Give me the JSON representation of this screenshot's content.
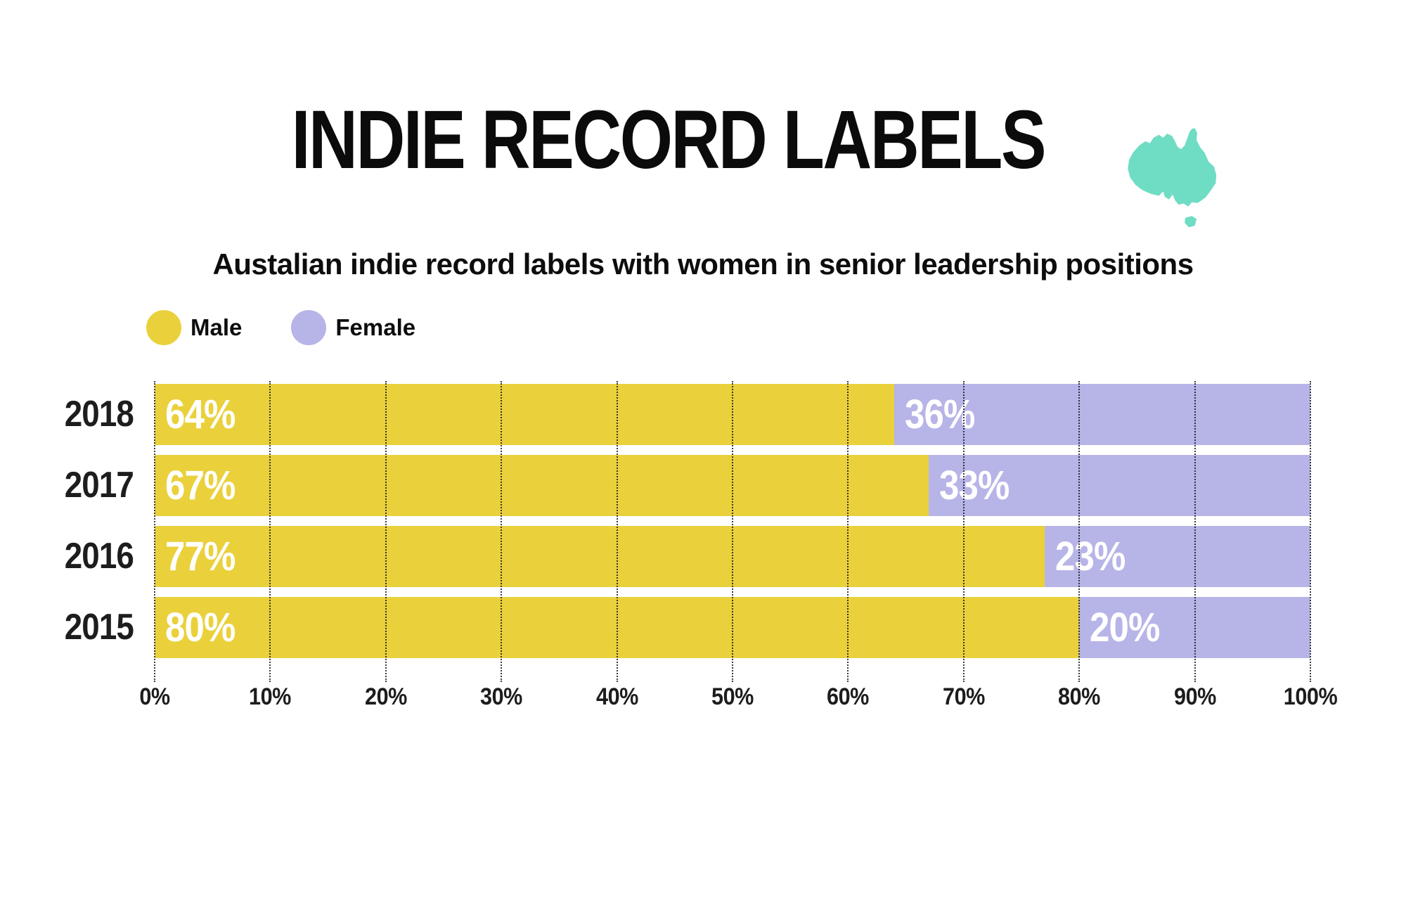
{
  "header": {
    "title": "INDIE RECORD LABELS",
    "subtitle": "Austalian indie record labels with women in senior leadership positions"
  },
  "colors": {
    "male": "#EAD13C",
    "female": "#B7B4E8",
    "map": "#6FDCC4",
    "bar_label": "#FFFFFF",
    "text": "#0d0d0d"
  },
  "legend": [
    {
      "label": "Male",
      "color": "#EAD13C",
      "icon": "male-color-swatch"
    },
    {
      "label": "Female",
      "color": "#B7B4E8",
      "icon": "female-color-swatch"
    }
  ],
  "icons": {
    "map": "australia-map-icon"
  },
  "chart_data": {
    "type": "bar",
    "orientation": "horizontal",
    "stacked": true,
    "title": "INDIE RECORD LABELS",
    "subtitle": "Austalian indie record labels with women in senior leadership positions",
    "categories": [
      "2018",
      "2017",
      "2016",
      "2015"
    ],
    "series": [
      {
        "name": "Male",
        "values": [
          64,
          67,
          77,
          80
        ],
        "color": "#EAD13C",
        "labels": [
          "64%",
          "67%",
          "77%",
          "80%"
        ]
      },
      {
        "name": "Female",
        "values": [
          36,
          33,
          23,
          20
        ],
        "color": "#B7B4E8",
        "labels": [
          "36%",
          "33%",
          "23%",
          "20%"
        ]
      }
    ],
    "xlabel": "",
    "ylabel": "",
    "xlim": [
      0,
      100
    ],
    "x_ticks": [
      "0%",
      "10%",
      "20%",
      "30%",
      "40%",
      "50%",
      "60%",
      "70%",
      "80%",
      "90%",
      "100%"
    ],
    "grid": "vertical-dotted",
    "legend_position": "top-left"
  }
}
